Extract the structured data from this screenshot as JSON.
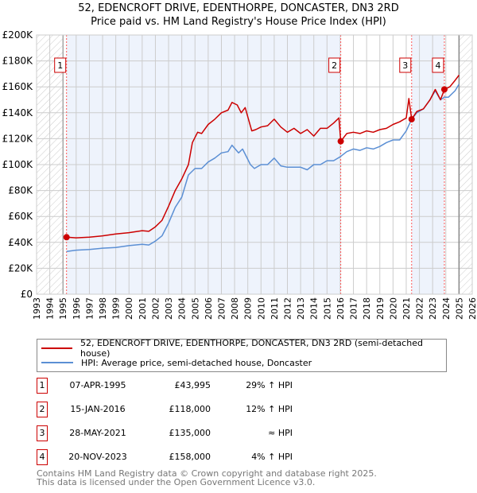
{
  "chart_data": {
    "type": "line",
    "title": "52, EDENCROFT DRIVE, EDENTHORPE, DONCASTER, DN3 2RD",
    "subtitle": "Price paid vs. HM Land Registry's House Price Index (HPI)",
    "xlim": [
      1993,
      2026
    ],
    "ylim": [
      0,
      200000
    ],
    "y_ticks": [
      0,
      20000,
      40000,
      60000,
      80000,
      100000,
      120000,
      140000,
      160000,
      180000,
      200000
    ],
    "y_tick_labels": [
      "£0",
      "£20K",
      "£40K",
      "£60K",
      "£80K",
      "£100K",
      "£120K",
      "£140K",
      "£160K",
      "£180K",
      "£200K"
    ],
    "x_ticks": [
      "1993",
      "1994",
      "1995",
      "1996",
      "1997",
      "1998",
      "1999",
      "2000",
      "2001",
      "2002",
      "2003",
      "2004",
      "2005",
      "2006",
      "2007",
      "2008",
      "2009",
      "2010",
      "2011",
      "2012",
      "2013",
      "2014",
      "2015",
      "2016",
      "2017",
      "2018",
      "2019",
      "2020",
      "2021",
      "2022",
      "2023",
      "2024",
      "2025",
      "2026"
    ],
    "grid": true,
    "legend_position": "below",
    "colors": {
      "property": "#cc0000",
      "hpi": "#5b8fd4",
      "shade": "#eef3fc",
      "marker_line": "#ff5555"
    },
    "data_range": [
      1995.0,
      2025.0
    ],
    "shaded_ranges": [
      [
        1995.27,
        2016.04
      ],
      [
        2021.41,
        2023.89
      ]
    ],
    "series": [
      {
        "name": "52, EDENCROFT DRIVE, EDENTHORPE, DONCASTER, DN3 2RD (semi-detached house)",
        "x": [
          1995.27,
          1996,
          1997,
          1998,
          1999,
          2000,
          2001,
          2001.5,
          2002,
          2002.5,
          2003,
          2003.5,
          2004,
          2004.5,
          2004.8,
          2005.2,
          2005.5,
          2006,
          2006.5,
          2007,
          2007.5,
          2007.8,
          2008.2,
          2008.5,
          2008.8,
          2009.3,
          2009.6,
          2010,
          2010.5,
          2011,
          2011.5,
          2012,
          2012.5,
          2013,
          2013.5,
          2014,
          2014.5,
          2015,
          2015.5,
          2015.9,
          2016.04,
          2016.5,
          2017,
          2017.5,
          2018,
          2018.5,
          2019,
          2019.5,
          2020,
          2020.5,
          2021,
          2021.2,
          2021.41,
          2021.8,
          2022.3,
          2022.8,
          2023.2,
          2023.6,
          2023.89,
          2024.3,
          2024.7,
          2025.0
        ],
        "values": [
          43995,
          43500,
          44000,
          45000,
          46500,
          47500,
          49000,
          48500,
          52000,
          57000,
          68000,
          80000,
          89000,
          100000,
          117000,
          125000,
          124000,
          131000,
          135000,
          140000,
          142000,
          148000,
          146000,
          140000,
          144000,
          126000,
          127000,
          129000,
          130000,
          135000,
          129000,
          125000,
          128000,
          124000,
          127000,
          122000,
          128000,
          128000,
          132000,
          136000,
          118000,
          124000,
          125000,
          124000,
          126000,
          125000,
          127000,
          128000,
          131000,
          133000,
          136000,
          151000,
          135000,
          141000,
          143000,
          150000,
          158000,
          150000,
          158000,
          160000,
          165000,
          169000
        ]
      },
      {
        "name": "HPI: Average price, semi-detached house, Doncaster",
        "x": [
          1995.27,
          1996,
          1997,
          1998,
          1999,
          2000,
          2001,
          2001.5,
          2002,
          2002.5,
          2003,
          2003.5,
          2004,
          2004.5,
          2005,
          2005.5,
          2006,
          2006.5,
          2007,
          2007.5,
          2007.8,
          2008.3,
          2008.6,
          2009.2,
          2009.5,
          2010,
          2010.5,
          2011,
          2011.5,
          2012,
          2012.5,
          2013,
          2013.5,
          2014,
          2014.5,
          2015,
          2015.5,
          2016,
          2016.5,
          2017,
          2017.5,
          2018,
          2018.5,
          2019,
          2019.5,
          2020,
          2020.5,
          2021,
          2021.41,
          2021.8,
          2022.3,
          2022.8,
          2023.2,
          2023.6,
          2023.89,
          2024.2,
          2024.7,
          2025.0
        ],
        "values": [
          33000,
          34000,
          34500,
          35500,
          36000,
          37500,
          38500,
          38000,
          41000,
          45000,
          55000,
          67000,
          75000,
          92000,
          97000,
          97000,
          102000,
          105000,
          109000,
          110000,
          115000,
          109000,
          112000,
          100000,
          97000,
          100000,
          100000,
          105000,
          99000,
          98000,
          98000,
          98000,
          96000,
          100000,
          100000,
          103000,
          103000,
          106000,
          110000,
          112000,
          111000,
          113000,
          112000,
          114000,
          117000,
          119000,
          119000,
          126000,
          135000,
          140000,
          143000,
          150000,
          157000,
          150000,
          152000,
          152000,
          157000,
          162000
        ]
      }
    ],
    "sales": [
      {
        "label": "1",
        "date": "07-APR-1995",
        "x": 1995.27,
        "price": "£43,995",
        "value": 43995,
        "hpi": "29% ↑ HPI"
      },
      {
        "label": "2",
        "date": "15-JAN-2016",
        "x": 2016.04,
        "price": "£118,000",
        "value": 118000,
        "hpi": "12% ↑ HPI"
      },
      {
        "label": "3",
        "date": "28-MAY-2021",
        "x": 2021.41,
        "price": "£135,000",
        "value": 135000,
        "hpi": "≈ HPI"
      },
      {
        "label": "4",
        "date": "20-NOV-2023",
        "x": 2023.89,
        "price": "£158,000",
        "value": 158000,
        "hpi": "4% ↑ HPI"
      }
    ]
  },
  "footer": {
    "line1": "Contains HM Land Registry data © Crown copyright and database right 2025.",
    "line2": "This data is licensed under the Open Government Licence v3.0."
  }
}
